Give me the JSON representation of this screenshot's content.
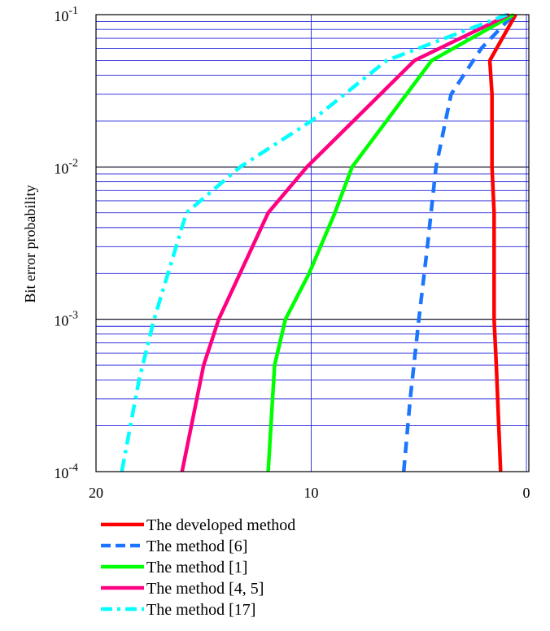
{
  "chart_data": {
    "type": "line",
    "title": "",
    "xlabel": "",
    "ylabel": "Bit error probability",
    "x_reversed": true,
    "xlim": [
      20,
      0
    ],
    "ylim": [
      0.0001,
      0.1
    ],
    "yscale": "log",
    "grid": true,
    "legend_position": "bottom",
    "x_ticks": [
      {
        "value": 20,
        "label": "20"
      },
      {
        "value": 10,
        "label": "10"
      },
      {
        "value": 0,
        "label": "0"
      }
    ],
    "y_ticks": [
      {
        "value": 0.1,
        "base": "10",
        "exp": "-1"
      },
      {
        "value": 0.01,
        "base": "10",
        "exp": "-2"
      },
      {
        "value": 0.001,
        "base": "10",
        "exp": "-3"
      },
      {
        "value": 0.0001,
        "base": "10",
        "exp": "-4"
      }
    ],
    "series": [
      {
        "name": "The developed method",
        "color": "#ff0000",
        "dash": "solid",
        "points": [
          [
            1.2,
            0.0001
          ],
          [
            1.4,
            0.0005
          ],
          [
            1.5,
            0.001
          ],
          [
            1.5,
            0.005
          ],
          [
            1.6,
            0.01
          ],
          [
            1.6,
            0.03
          ],
          [
            1.7,
            0.05
          ],
          [
            0.5,
            0.1
          ]
        ]
      },
      {
        "name": "The method [6]",
        "color": "#1a75ff",
        "dash": "dash",
        "points": [
          [
            5.7,
            0.0001
          ],
          [
            5.4,
            0.0003
          ],
          [
            5.0,
            0.001
          ],
          [
            4.6,
            0.003
          ],
          [
            4.2,
            0.01
          ],
          [
            3.5,
            0.03
          ],
          [
            2.1,
            0.06
          ],
          [
            0.6,
            0.1
          ]
        ]
      },
      {
        "name": "The method [1]",
        "color": "#00ff00",
        "dash": "solid",
        "points": [
          [
            12.0,
            0.0001
          ],
          [
            11.7,
            0.0005
          ],
          [
            11.2,
            0.001
          ],
          [
            10.1,
            0.002
          ],
          [
            8.9,
            0.005
          ],
          [
            8.1,
            0.01
          ],
          [
            4.4,
            0.05
          ],
          [
            0.6,
            0.1
          ]
        ]
      },
      {
        "name": "The method [4, 5]",
        "color": "#ff0080",
        "dash": "solid",
        "points": [
          [
            16.0,
            0.0001
          ],
          [
            15.0,
            0.0005
          ],
          [
            14.3,
            0.001
          ],
          [
            12.0,
            0.005
          ],
          [
            10.2,
            0.01
          ],
          [
            5.2,
            0.05
          ],
          [
            0.8,
            0.1
          ]
        ]
      },
      {
        "name": "The method [17]",
        "color": "#00ffff",
        "dash": "dashdot",
        "points": [
          [
            18.8,
            0.0001
          ],
          [
            18.0,
            0.0004
          ],
          [
            17.3,
            0.001
          ],
          [
            15.8,
            0.005
          ],
          [
            13.3,
            0.01
          ],
          [
            10.0,
            0.02
          ],
          [
            6.5,
            0.05
          ],
          [
            0.9,
            0.1
          ]
        ]
      }
    ]
  }
}
